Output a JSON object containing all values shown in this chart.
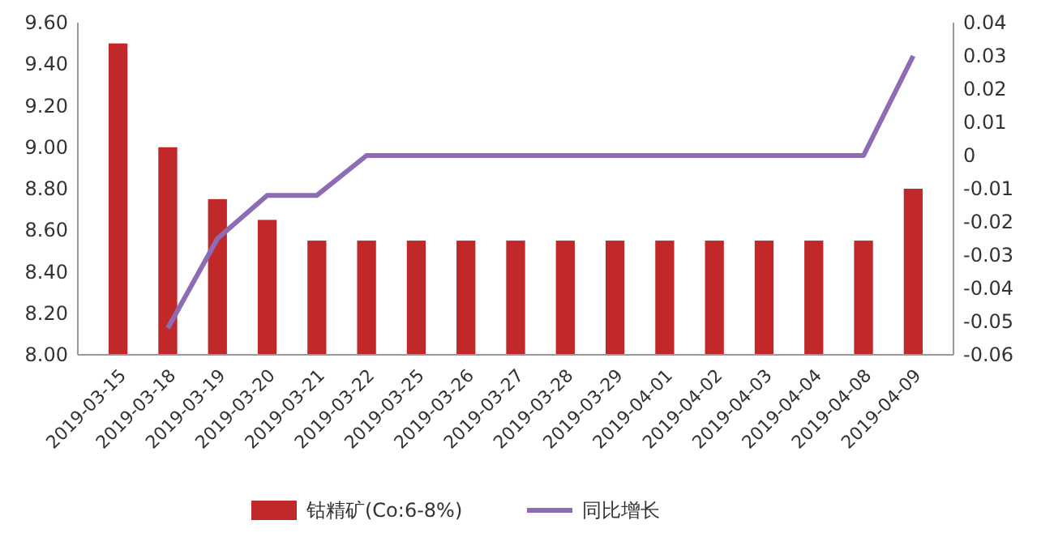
{
  "chart_data": {
    "type": "bar",
    "categories": [
      "2019-03-15",
      "2019-03-18",
      "2019-03-19",
      "2019-03-20",
      "2019-03-21",
      "2019-03-22",
      "2019-03-25",
      "2019-03-26",
      "2019-03-27",
      "2019-03-28",
      "2019-03-29",
      "2019-04-01",
      "2019-04-02",
      "2019-04-03",
      "2019-04-04",
      "2019-04-08",
      "2019-04-09"
    ],
    "series": [
      {
        "name": "钴精矿(Co:6-8%)",
        "color": "#c0282a",
        "values": [
          9.5,
          9.0,
          8.75,
          8.65,
          8.55,
          8.55,
          8.55,
          8.55,
          8.55,
          8.55,
          8.55,
          8.55,
          8.55,
          8.55,
          8.55,
          8.55,
          8.8
        ]
      },
      {
        "name": "同比增长",
        "type": "line",
        "axis": "y2",
        "color": "#8e6bb5",
        "values": [
          null,
          -0.052,
          -0.025,
          -0.012,
          -0.012,
          0,
          0,
          0,
          0,
          0,
          0,
          0,
          0,
          0,
          0,
          0,
          0.03
        ]
      }
    ],
    "ylim": [
      8.0,
      9.6
    ],
    "yticks": [
      {
        "value": 8.0,
        "label": "8.00"
      },
      {
        "value": 8.2,
        "label": "8.20"
      },
      {
        "value": 8.4,
        "label": "8.40"
      },
      {
        "value": 8.6,
        "label": "8.60"
      },
      {
        "value": 8.8,
        "label": "8.80"
      },
      {
        "value": 9.0,
        "label": "9.00"
      },
      {
        "value": 9.2,
        "label": "9.20"
      },
      {
        "value": 9.4,
        "label": "9.40"
      },
      {
        "value": 9.6,
        "label": "9.60"
      }
    ],
    "y2lim": [
      -0.06,
      0.04
    ],
    "y2ticks": [
      -0.06,
      -0.05,
      -0.04,
      -0.03,
      -0.02,
      -0.01,
      0,
      0.01,
      0.02,
      0.03,
      0.04
    ],
    "grid": false,
    "legend": "bottom",
    "marker": "none"
  }
}
